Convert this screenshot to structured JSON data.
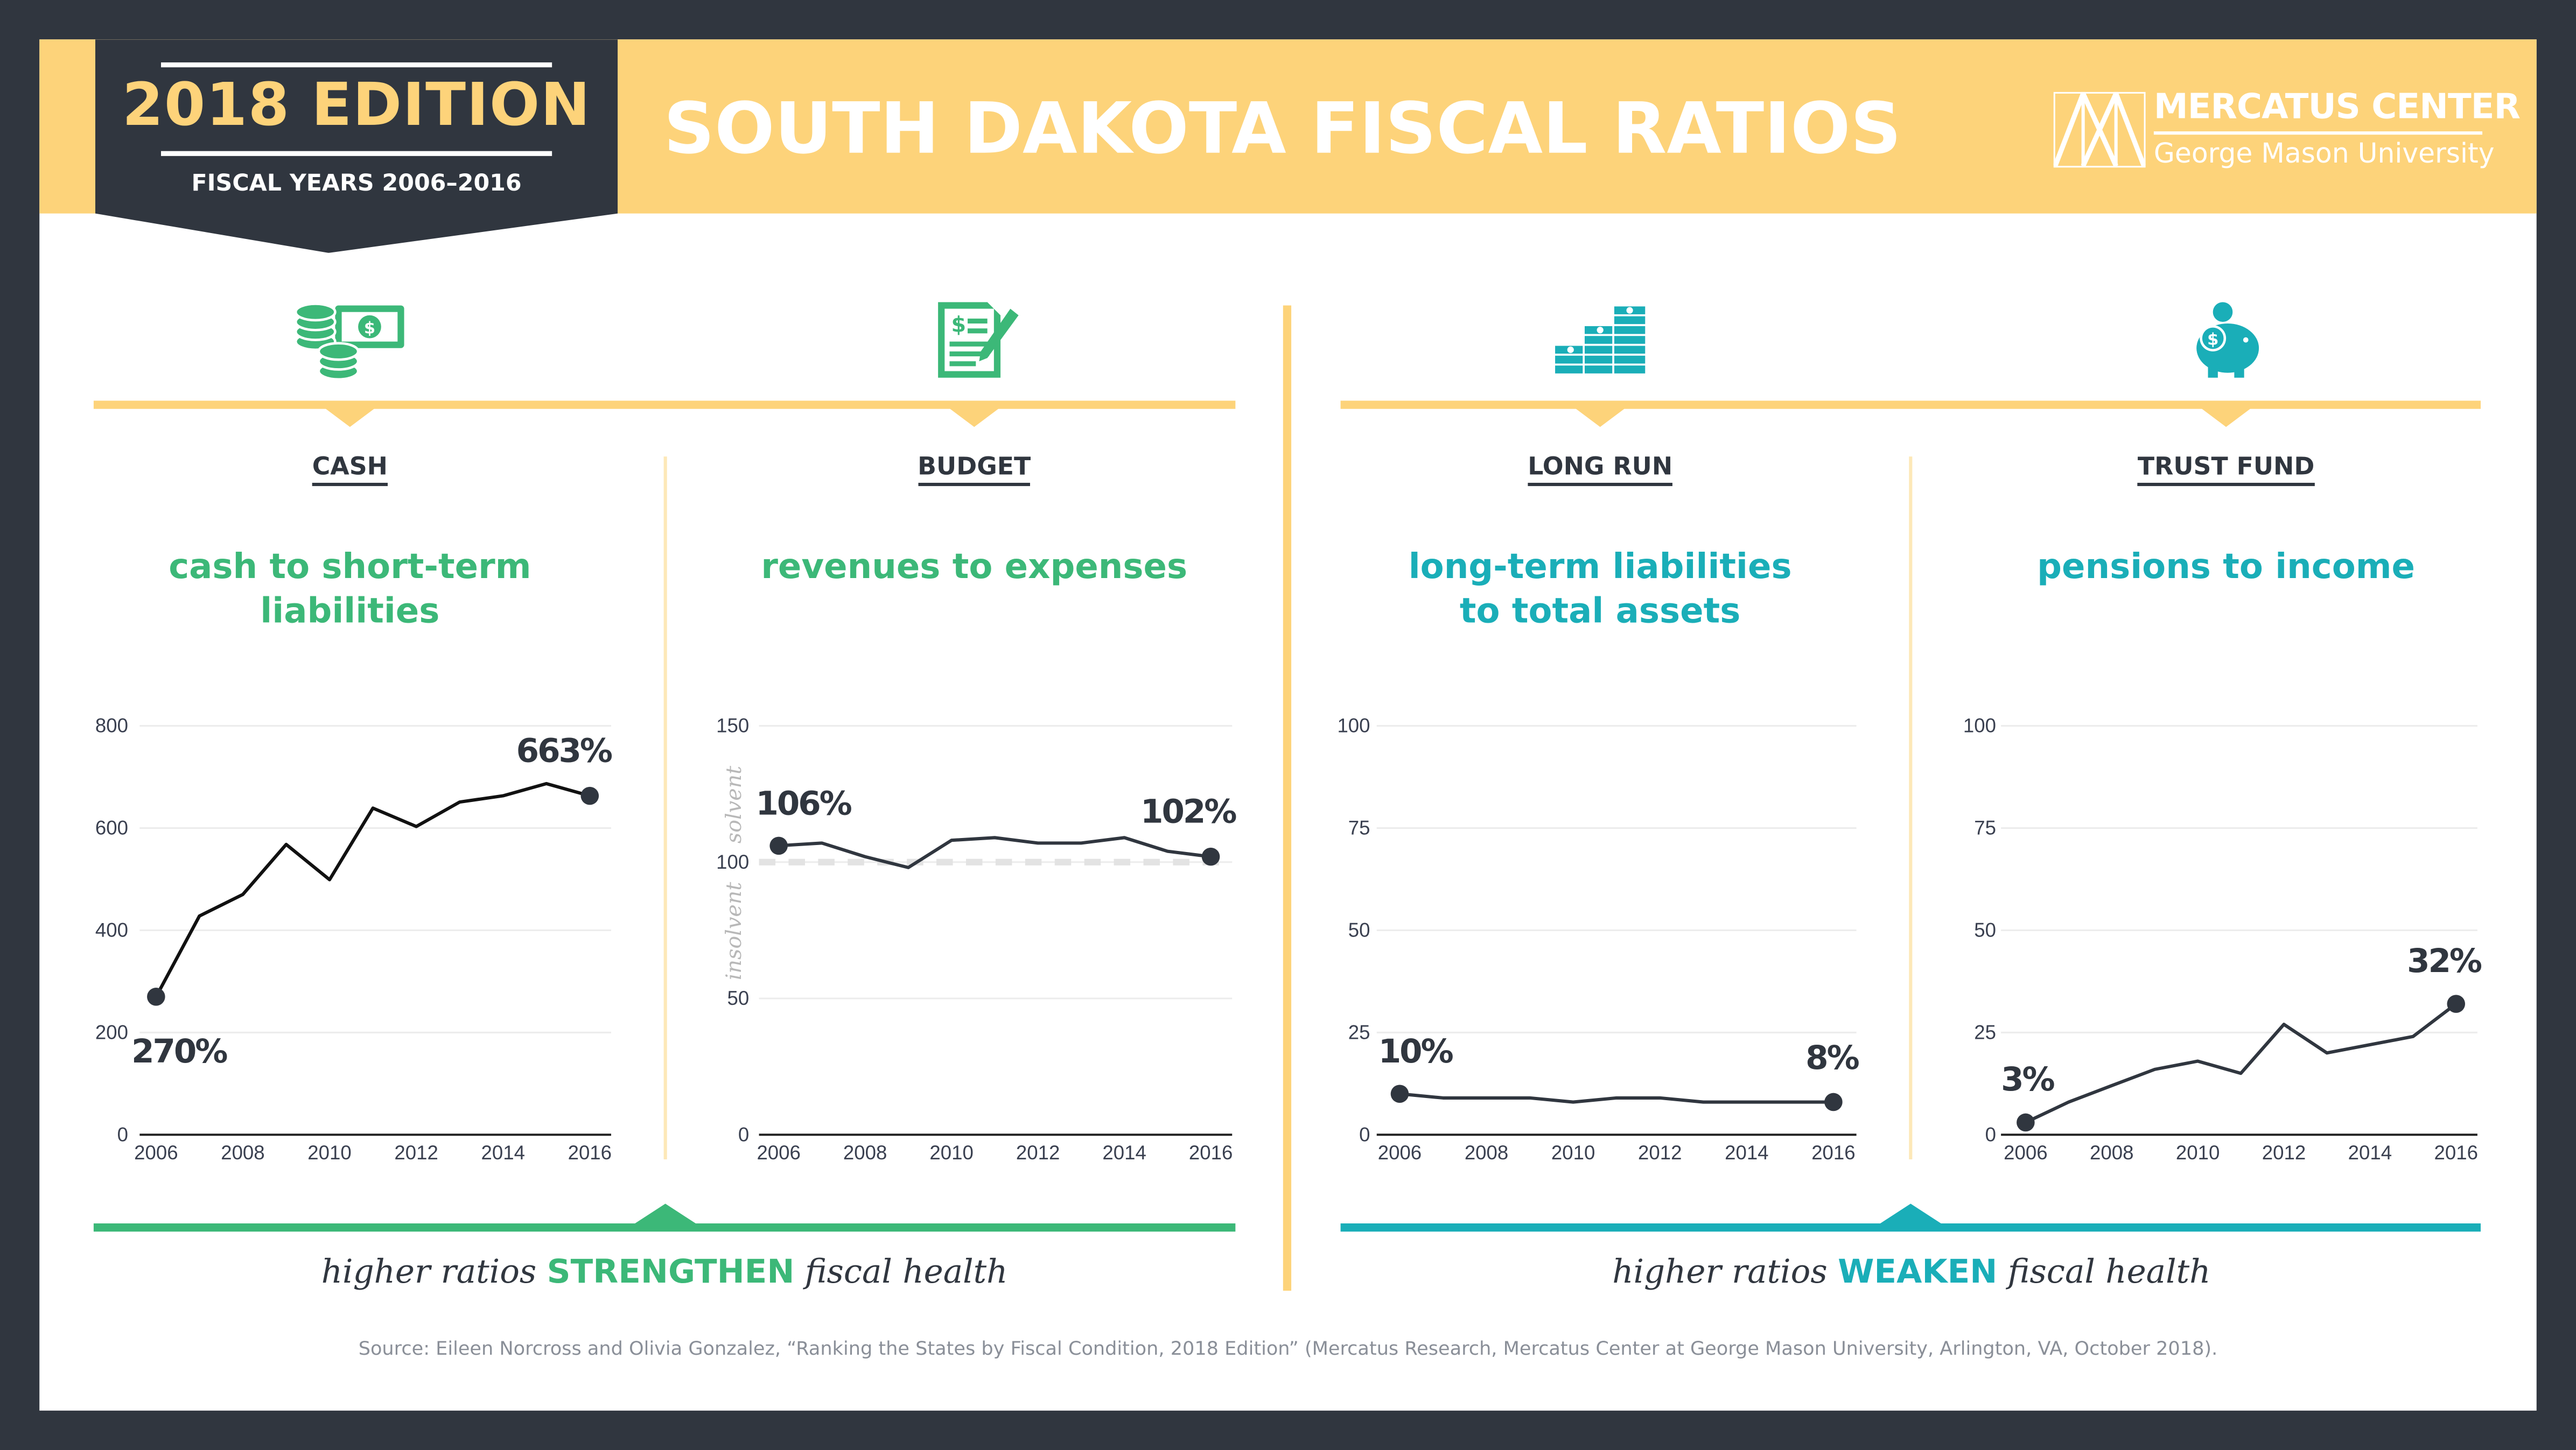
{
  "header": {
    "edition": "2018 EDITION",
    "fiscal_years": "FISCAL YEARS 2006–2016",
    "title": "SOUTH DAKOTA FISCAL RATIOS",
    "logo_top": "MERCATUS CENTER",
    "logo_bottom": "George Mason University"
  },
  "colors": {
    "navy": "#30363f",
    "yellow": "#fdd37a",
    "green": "#3cb878",
    "teal": "#1aaeb8"
  },
  "columns": [
    {
      "label": "CASH",
      "subtitle_1": "cash to short-term",
      "subtitle_2": "liabilities",
      "icon": "cash-coins-icon"
    },
    {
      "label": "BUDGET",
      "subtitle_1": "revenues to expenses",
      "subtitle_2": "",
      "icon": "budget-document-icon"
    },
    {
      "label": "LONG RUN",
      "subtitle_1": "long-term liabilities",
      "subtitle_2": "to total assets",
      "icon": "money-stacks-icon"
    },
    {
      "label": "TRUST FUND",
      "subtitle_1": "pensions to income",
      "subtitle_2": "",
      "icon": "piggy-bank-icon"
    }
  ],
  "footer": {
    "left_pre": "higher ratios ",
    "left_strong": "STRENGTHEN",
    "left_post": " fiscal health",
    "right_pre": "higher ratios ",
    "right_strong": "WEAKEN",
    "right_post": " fiscal health",
    "source": "Source: Eileen Norcross and Olivia Gonzalez, “Ranking the States by Fiscal Condition, 2018 Edition” (Mercatus Research, Mercatus Center at George Mason University, Arlington, VA, October 2018)."
  },
  "chart_data": [
    {
      "type": "line",
      "title": "CASH",
      "x": [
        2006,
        2007,
        2008,
        2009,
        2010,
        2011,
        2012,
        2013,
        2014,
        2015,
        2016
      ],
      "values": [
        270,
        428,
        470,
        568,
        499,
        639,
        603,
        651,
        663,
        687,
        663
      ],
      "ylim": [
        0,
        800
      ],
      "yticks": [
        0,
        200,
        400,
        600,
        800
      ],
      "xticks": [
        2006,
        2008,
        2010,
        2012,
        2014,
        2016
      ],
      "start_label": "270%",
      "end_label": "663%",
      "grid": true
    },
    {
      "type": "line",
      "title": "BUDGET",
      "x": [
        2006,
        2007,
        2008,
        2009,
        2010,
        2011,
        2012,
        2013,
        2014,
        2015,
        2016
      ],
      "values": [
        106,
        107,
        102,
        98,
        108,
        109,
        107,
        107,
        109,
        104,
        102
      ],
      "ylim": [
        0,
        150
      ],
      "yticks": [
        0,
        50,
        100,
        150
      ],
      "xticks": [
        2006,
        2008,
        2010,
        2012,
        2014,
        2016
      ],
      "start_label": "106%",
      "end_label": "102%",
      "reference_line": 100,
      "annotation_above": "solvent",
      "annotation_below": "insolvent",
      "grid": true
    },
    {
      "type": "line",
      "title": "LONG RUN",
      "x": [
        2006,
        2007,
        2008,
        2009,
        2010,
        2011,
        2012,
        2013,
        2014,
        2015,
        2016
      ],
      "values": [
        10,
        9,
        9,
        9,
        8,
        9,
        9,
        8,
        8,
        8,
        8
      ],
      "ylim": [
        0,
        100
      ],
      "yticks": [
        0,
        25,
        50,
        75,
        100
      ],
      "xticks": [
        2006,
        2008,
        2010,
        2012,
        2014,
        2016
      ],
      "start_label": "10%",
      "end_label": "8%",
      "grid": true
    },
    {
      "type": "line",
      "title": "TRUST FUND",
      "x": [
        2006,
        2007,
        2008,
        2009,
        2010,
        2011,
        2012,
        2013,
        2014,
        2015,
        2016
      ],
      "values": [
        3,
        8,
        12,
        16,
        18,
        15,
        27,
        20,
        22,
        24,
        32
      ],
      "ylim": [
        0,
        100
      ],
      "yticks": [
        0,
        25,
        50,
        75,
        100
      ],
      "xticks": [
        2006,
        2008,
        2010,
        2012,
        2014,
        2016
      ],
      "start_label": "3%",
      "end_label": "32%",
      "grid": true
    }
  ]
}
